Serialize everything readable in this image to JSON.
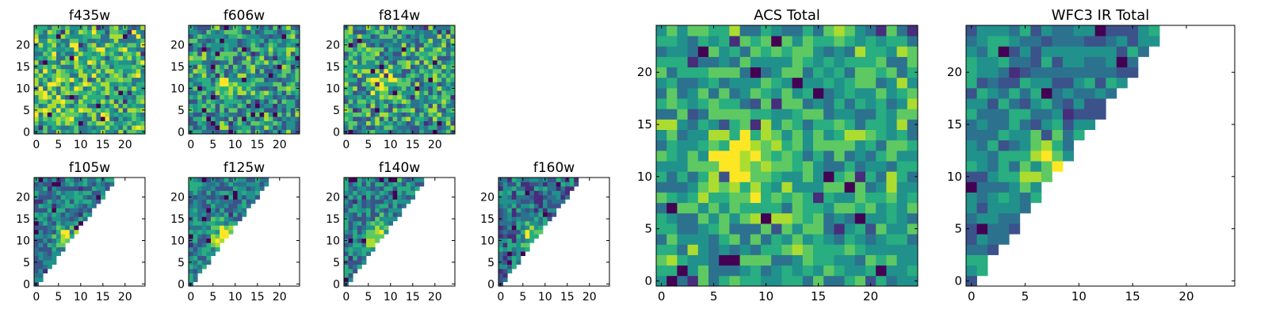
{
  "chart_data": [
    {
      "type": "heatmap",
      "title": "f435w",
      "x_ticks": [
        "0",
        "5",
        "10",
        "15",
        "20"
      ],
      "y_ticks": [
        "0",
        "5",
        "10",
        "15",
        "20"
      ],
      "xlim": [
        0,
        25
      ],
      "ylim": [
        0,
        25
      ],
      "grid": false,
      "colormap": "viridis",
      "bright_region": "none",
      "mask": "none"
    },
    {
      "type": "heatmap",
      "title": "f606w",
      "x_ticks": [
        "0",
        "5",
        "10",
        "15",
        "20"
      ],
      "y_ticks": [
        "0",
        "5",
        "10",
        "15",
        "20"
      ],
      "xlim": [
        0,
        25
      ],
      "ylim": [
        0,
        25
      ],
      "grid": false,
      "colormap": "viridis",
      "bright_region": "center (x≈8, y≈11)",
      "mask": "none"
    },
    {
      "type": "heatmap",
      "title": "f814w",
      "x_ticks": [
        "0",
        "5",
        "10",
        "15",
        "20"
      ],
      "y_ticks": [
        "0",
        "5",
        "10",
        "15",
        "20"
      ],
      "xlim": [
        0,
        25
      ],
      "ylim": [
        0,
        25
      ],
      "grid": false,
      "colormap": "viridis",
      "bright_region": "center (x≈8, y≈11)",
      "mask": "none"
    },
    {
      "type": "heatmap",
      "title": "f105w",
      "x_ticks": [
        "0",
        "5",
        "10",
        "15",
        "20"
      ],
      "y_ticks": [
        "0",
        "5",
        "10",
        "15",
        "20"
      ],
      "xlim": [
        0,
        25
      ],
      "ylim": [
        0,
        25
      ],
      "grid": false,
      "colormap": "viridis",
      "bright_region": "x≈7, y≈11",
      "mask": "upper-left triangle (y ≥ 1.35·x)"
    },
    {
      "type": "heatmap",
      "title": "f125w",
      "x_ticks": [
        "0",
        "5",
        "10",
        "15",
        "20"
      ],
      "y_ticks": [
        "0",
        "5",
        "10",
        "15",
        "20"
      ],
      "xlim": [
        0,
        25
      ],
      "ylim": [
        0,
        25
      ],
      "grid": false,
      "colormap": "viridis",
      "bright_region": "x≈7, y≈11",
      "mask": "upper-left triangle (y ≥ 1.35·x)"
    },
    {
      "type": "heatmap",
      "title": "f140w",
      "x_ticks": [
        "0",
        "5",
        "10",
        "15",
        "20"
      ],
      "y_ticks": [
        "0",
        "5",
        "10",
        "15",
        "20"
      ],
      "xlim": [
        0,
        25
      ],
      "ylim": [
        0,
        25
      ],
      "grid": false,
      "colormap": "viridis",
      "bright_region": "x≈7, y≈11",
      "mask": "upper-left triangle (y ≥ 1.35·x)"
    },
    {
      "type": "heatmap",
      "title": "f160w",
      "x_ticks": [
        "0",
        "5",
        "10",
        "15",
        "20"
      ],
      "y_ticks": [
        "0",
        "5",
        "10",
        "15",
        "20"
      ],
      "xlim": [
        0,
        25
      ],
      "ylim": [
        0,
        25
      ],
      "grid": false,
      "colormap": "viridis",
      "bright_region": "x≈7, y≈11",
      "mask": "upper-left triangle (y ≥ 1.35·x)"
    },
    {
      "type": "heatmap",
      "title": "ACS Total",
      "x_ticks": [
        "0",
        "5",
        "10",
        "15",
        "20"
      ],
      "y_ticks": [
        "0",
        "5",
        "10",
        "15",
        "20"
      ],
      "xlim": [
        0,
        25
      ],
      "ylim": [
        0,
        25
      ],
      "grid": false,
      "colormap": "viridis",
      "bright_region": "x≈7–8, y≈9–13",
      "mask": "none"
    },
    {
      "type": "heatmap",
      "title": "WFC3 IR Total",
      "x_ticks": [
        "0",
        "5",
        "10",
        "15",
        "20"
      ],
      "y_ticks": [
        "0",
        "5",
        "10",
        "15",
        "20"
      ],
      "xlim": [
        0,
        25
      ],
      "ylim": [
        0,
        25
      ],
      "grid": false,
      "colormap": "viridis",
      "bright_region": "x≈7, y≈11",
      "mask": "upper-left triangle (y ≥ 1.35·x)"
    }
  ],
  "colors": {
    "viridis": [
      "#440154",
      "#472d7b",
      "#3b528b",
      "#2c728e",
      "#21918c",
      "#28ae80",
      "#5ec962",
      "#addc30",
      "#fde725"
    ],
    "axis": "#000000",
    "background": "#ffffff"
  }
}
